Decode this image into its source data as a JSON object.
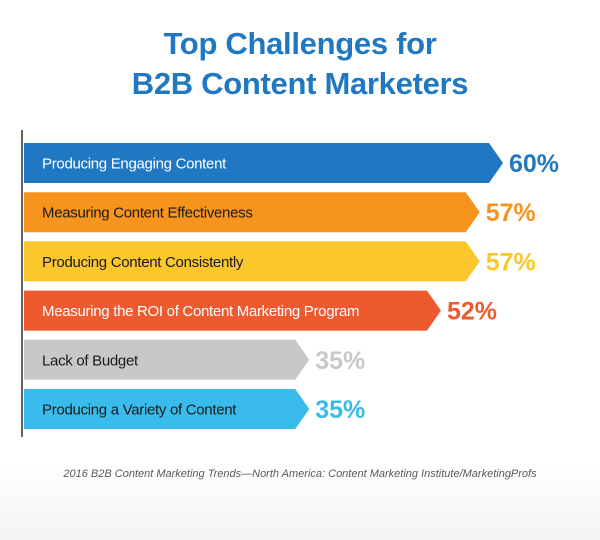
{
  "title_lines": [
    "Top Challenges for",
    "B2B Content Marketers"
  ],
  "source": "2016 B2B Content Marketing Trends—North America: Content Marketing Institute/MarketingProfs",
  "colors": {
    "title": "#1f78c1",
    "axis": "#333333",
    "label_dark": "#1a1a1a",
    "label_light": "#ffffff"
  },
  "chart_data": {
    "type": "bar",
    "orientation": "horizontal",
    "title": "Top Challenges for B2B Content Marketers",
    "categories": [
      "Producing Engaging Content",
      "Measuring Content Effectiveness",
      "Producing Content Consistently",
      "Measuring the ROI of Content Marketing Program",
      "Lack of Budget",
      "Producing a Variety of Content"
    ],
    "values": [
      60,
      57,
      57,
      52,
      35,
      35
    ],
    "value_labels": [
      "60%",
      "57%",
      "57%",
      "52%",
      "35%",
      "35%"
    ],
    "bar_colors": [
      "#1f78c1",
      "#f7941d",
      "#fcc72d",
      "#ee5a2f",
      "#c8c8c8",
      "#39bcec"
    ],
    "label_colors": [
      "#ffffff",
      "#1a1a1a",
      "#1a1a1a",
      "#ffffff",
      "#1a1a1a",
      "#1a1a1a"
    ],
    "value_label_colors": [
      "#1f78c1",
      "#f7941d",
      "#fcc72d",
      "#ee5a2f",
      "#c8c8c8",
      "#39bcec"
    ],
    "xlim": [
      0,
      100
    ],
    "grid": false,
    "legend": "none",
    "bar_end": "arrow"
  }
}
